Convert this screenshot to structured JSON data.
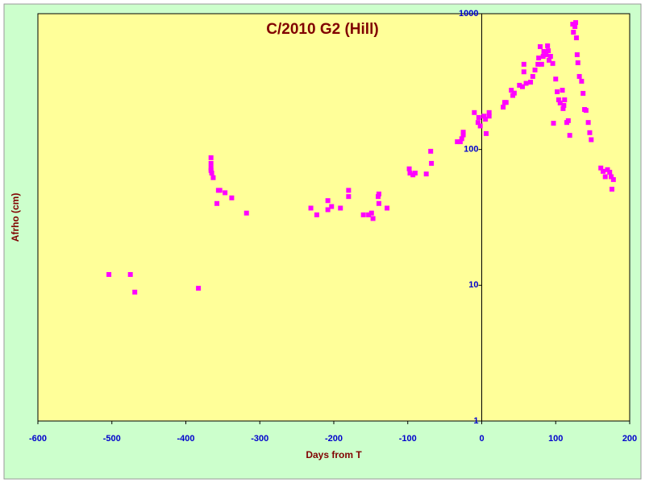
{
  "chart_data": {
    "type": "scatter",
    "title": "C/2010 G2 (Hill)",
    "x_label": "Days from T",
    "y_label": "Afrho (cm)",
    "yscale": "log",
    "color": "#ff00ff",
    "grid": false,
    "xlim": [
      -600,
      200
    ],
    "xticks": [
      -600,
      -500,
      -400,
      -300,
      -200,
      -100,
      0,
      100,
      200
    ],
    "ylim": [
      1,
      1000
    ],
    "yticks": [
      1,
      10,
      100,
      1000
    ],
    "x": [
      -504,
      -475,
      -469,
      -383,
      -366,
      -366,
      -366,
      -366,
      -365,
      -363,
      -356,
      -354,
      -358,
      -347,
      -338,
      -318,
      -231,
      -223,
      -208,
      -208,
      -203,
      -191,
      -180,
      -180,
      -160,
      -153,
      -149,
      -147,
      -140,
      -139,
      -139,
      -128,
      -98,
      -97,
      -93,
      -90,
      -75,
      -69,
      -68,
      -33,
      -29,
      -27,
      -25,
      -25,
      -10,
      -5,
      -4,
      -2,
      3,
      5,
      6,
      10,
      10,
      29,
      31,
      33,
      40,
      42,
      44,
      51,
      55,
      57,
      57,
      60,
      66,
      69,
      72,
      76,
      77,
      79,
      81,
      83,
      84,
      87,
      89,
      90,
      91,
      93,
      96,
      97,
      100,
      102,
      104,
      106,
      109,
      110,
      111,
      112,
      115,
      117,
      119,
      123,
      124,
      126,
      127,
      128,
      129,
      130,
      132,
      135,
      137,
      139,
      141,
      144,
      146,
      148,
      161,
      164,
      167,
      170,
      173,
      175,
      178,
      176
    ],
    "y": [
      12,
      12,
      8.9,
      9.5,
      87,
      79,
      73,
      70,
      67,
      62,
      50,
      50,
      40,
      48,
      44,
      34,
      37,
      33,
      42,
      36,
      38,
      37,
      50,
      45,
      33,
      33,
      34,
      31,
      45,
      47,
      40,
      37,
      72,
      67,
      65,
      67,
      66,
      97,
      79,
      114,
      114,
      120,
      134,
      128,
      187,
      158,
      172,
      149,
      176,
      167,
      131,
      187,
      176,
      205,
      222,
      222,
      273,
      250,
      260,
      297,
      290,
      424,
      373,
      307,
      313,
      345,
      385,
      424,
      472,
      572,
      424,
      485,
      527,
      499,
      580,
      533,
      454,
      485,
      430,
      156,
      330,
      266,
      232,
      220,
      273,
      200,
      211,
      232,
      158,
      163,
      127,
      837,
      730,
      804,
      860,
      664,
      499,
      435,
      345,
      318,
      259,
      197,
      194,
      158,
      133,
      118,
      73,
      69,
      63,
      71,
      68,
      63,
      60,
      51
    ]
  }
}
